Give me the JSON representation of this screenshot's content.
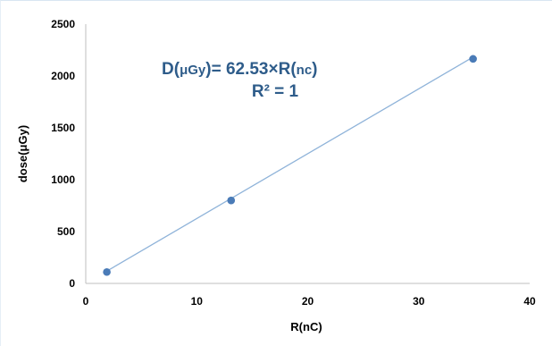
{
  "chart_data": {
    "type": "scatter",
    "title": "",
    "xlabel": "R(nC)",
    "ylabel": "dose(μGy)",
    "xlim": [
      0,
      40
    ],
    "ylim": [
      0,
      2500
    ],
    "xticks": [
      0,
      10,
      20,
      30,
      40
    ],
    "yticks": [
      0,
      500,
      1000,
      1500,
      2000,
      2500
    ],
    "xtick_labels": [
      "0",
      "10",
      "20",
      "30",
      "40"
    ],
    "ytick_labels": [
      "0",
      "500",
      "1000",
      "1500",
      "2000",
      "2500"
    ],
    "grid": false,
    "series": [
      {
        "x": [
          1.9,
          13.1,
          34.9
        ],
        "y": [
          110,
          800,
          2165
        ],
        "color": "#4a7bb7"
      }
    ],
    "trendline": {
      "type": "linear",
      "slope": 62.53,
      "intercept": 0,
      "color": "#8fb3d9"
    },
    "annotations": {
      "equation_prefix": "D(",
      "equation_unit1": "μGy",
      "equation_middle": ")= 62.53×R(",
      "equation_unit2": "nc",
      "equation_suffix": ")",
      "r2_text": "R² = 1"
    }
  }
}
